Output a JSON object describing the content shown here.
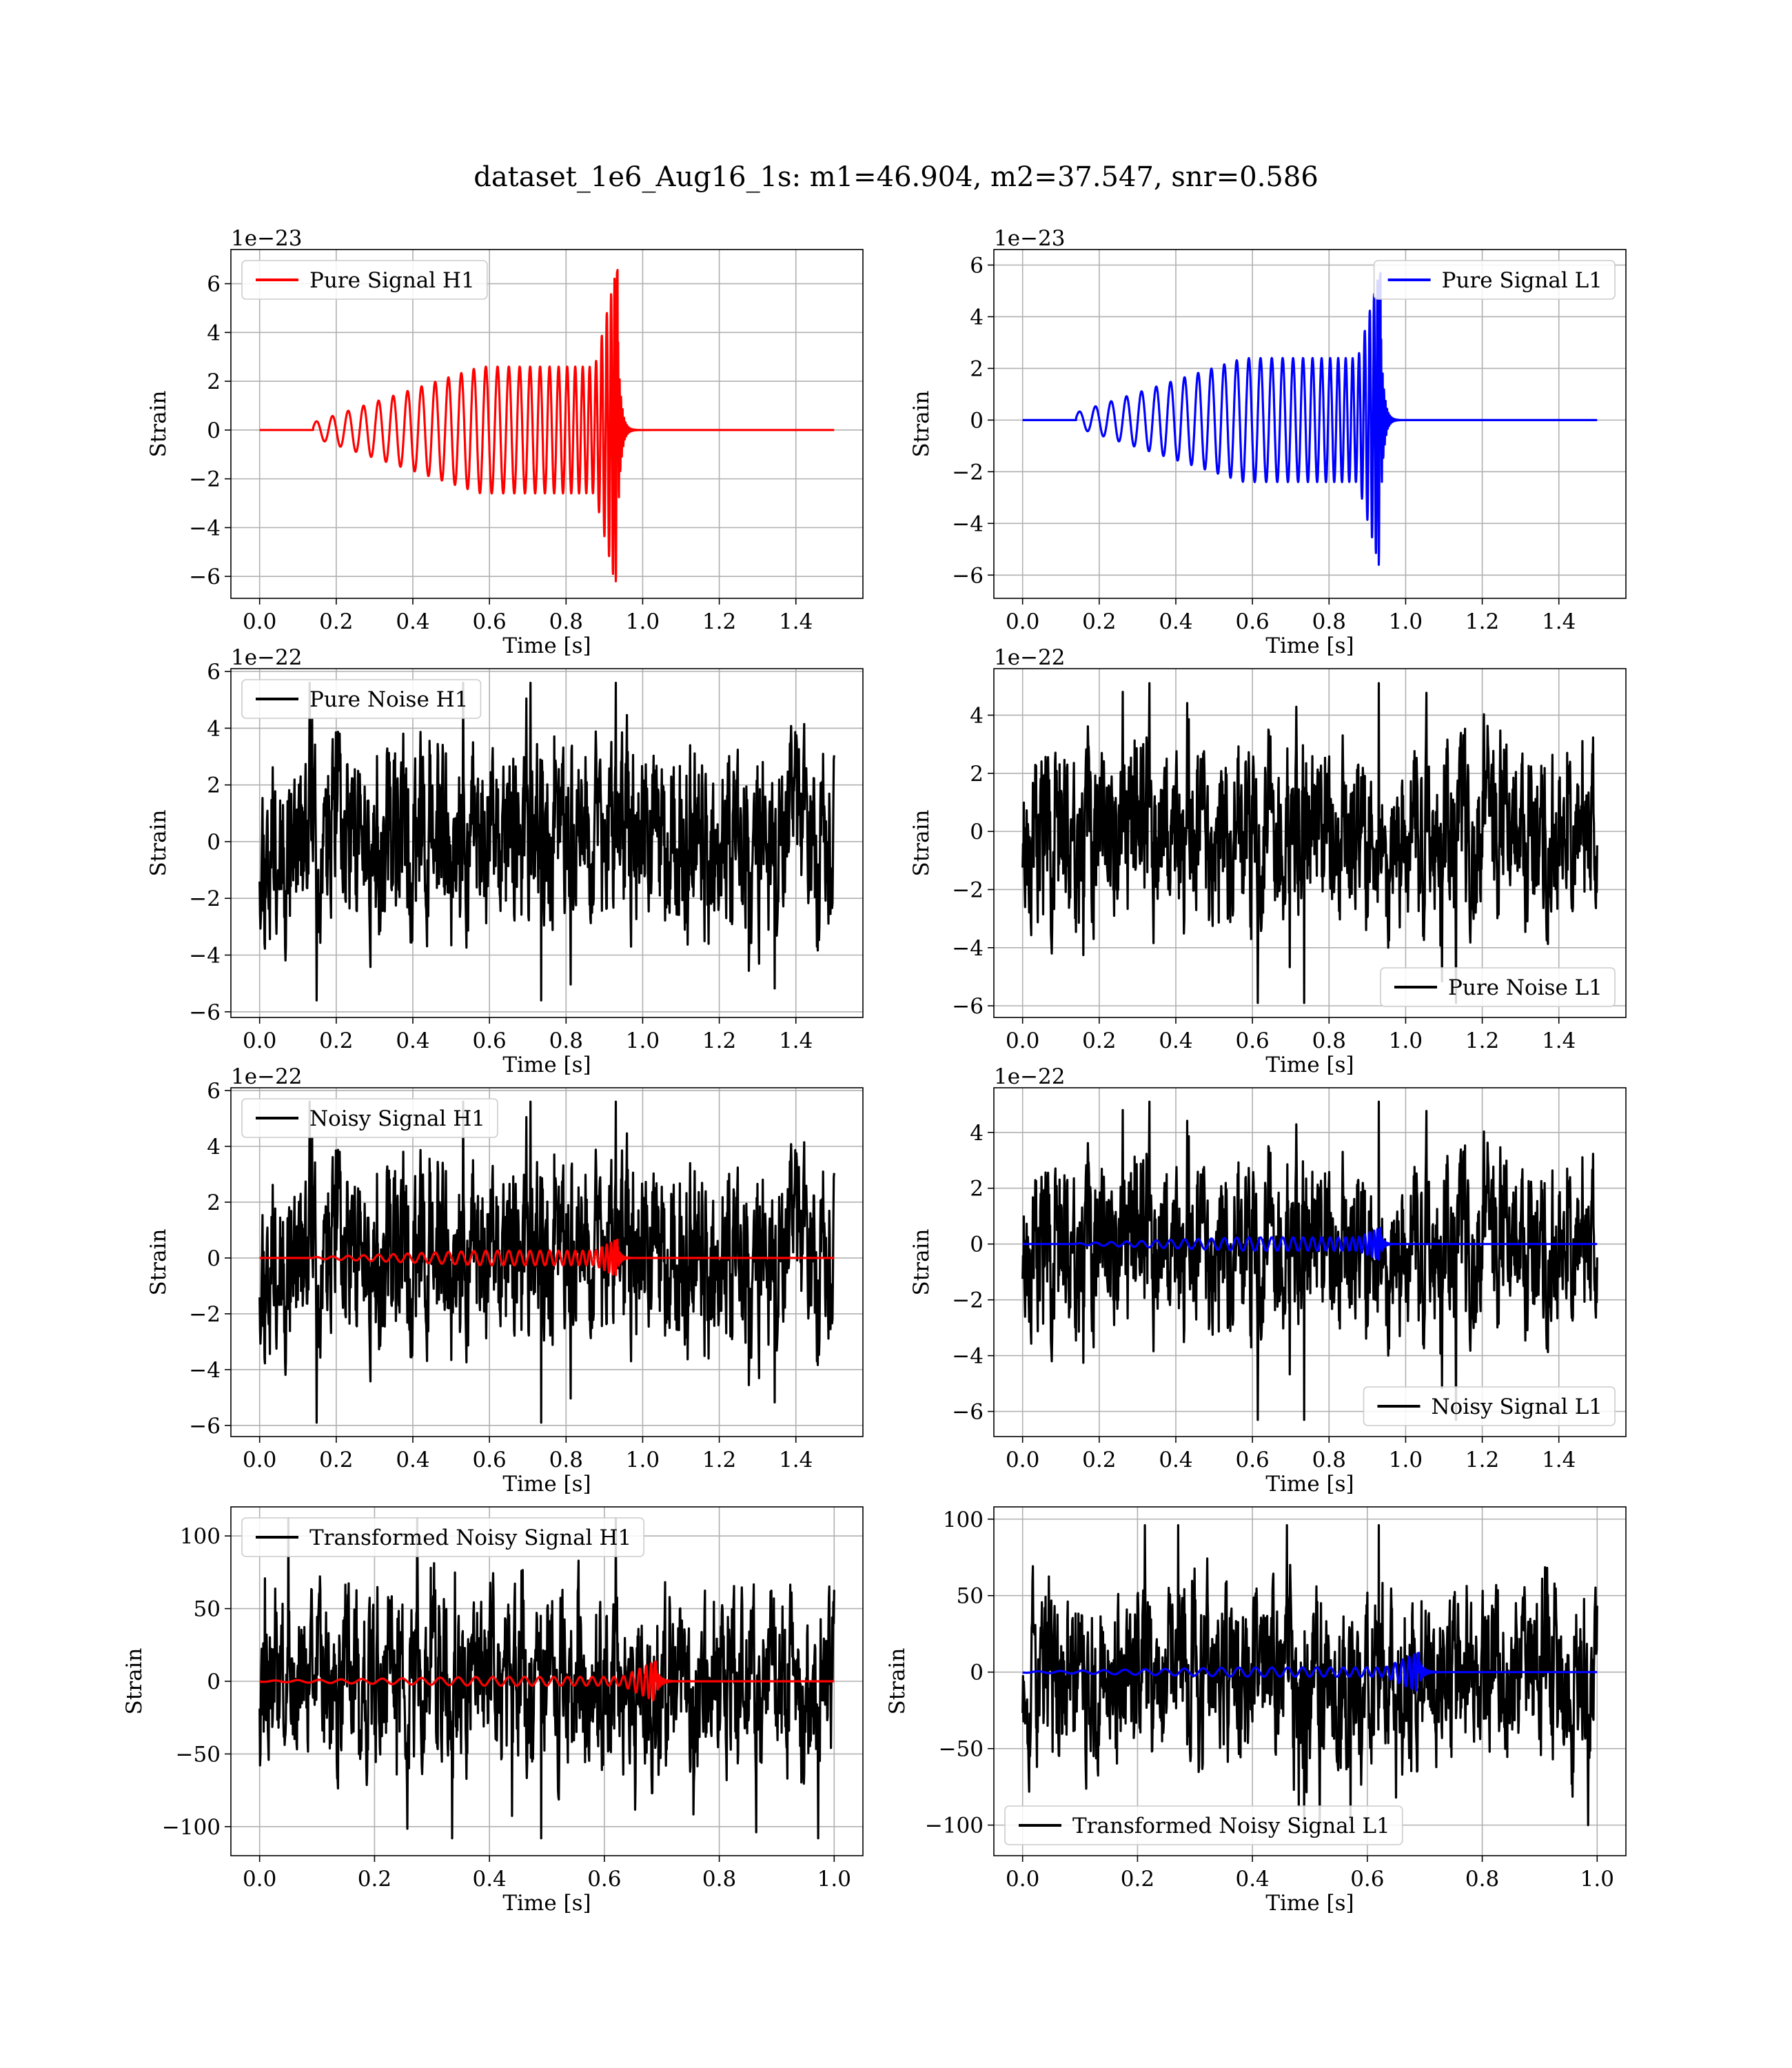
{
  "figure": {
    "title": "dataset_1e6_Aug16_1s: m1=46.904, m2=37.547, snr=0.586"
  },
  "colors": {
    "h1_signal": "#ff0000",
    "l1_signal": "#0000ff",
    "noise": "#000000",
    "grid": "#b0b0b0",
    "axes": "#000000"
  },
  "chart_data": [
    {
      "id": "pure-signal-h1",
      "type": "line",
      "xlabel": "Time [s]",
      "ylabel": "Strain",
      "offset_text": "1e−23",
      "xlim": [
        -0.075,
        1.575
      ],
      "ylim": [
        -6.9,
        7.4
      ],
      "xticks": [
        0.0,
        0.2,
        0.4,
        0.6,
        0.8,
        1.0,
        1.2,
        1.4
      ],
      "xtick_labels": [
        "0.0",
        "0.2",
        "0.4",
        "0.6",
        "0.8",
        "1.0",
        "1.2",
        "1.4"
      ],
      "yticks": [
        -6,
        -4,
        -2,
        0,
        2,
        4,
        6
      ],
      "ytick_labels": [
        "−6",
        "−4",
        "−2",
        "0",
        "2",
        "4",
        "6"
      ],
      "grid": true,
      "legend_position": "upper-left",
      "series": [
        {
          "name": "Pure Signal H1",
          "color": "#ff0000",
          "kind": "chirp",
          "x_range": [
            0.0,
            1.5
          ],
          "onset": 0.14,
          "merger": 0.935,
          "peak_amplitude": 6.8,
          "plateau_amplitude": 2.6,
          "min_value": -6.2
        }
      ]
    },
    {
      "id": "pure-signal-l1",
      "type": "line",
      "xlabel": "Time [s]",
      "ylabel": "Strain",
      "offset_text": "1e−23",
      "xlim": [
        -0.075,
        1.575
      ],
      "ylim": [
        -6.9,
        6.6
      ],
      "xticks": [
        0.0,
        0.2,
        0.4,
        0.6,
        0.8,
        1.0,
        1.2,
        1.4
      ],
      "xtick_labels": [
        "0.0",
        "0.2",
        "0.4",
        "0.6",
        "0.8",
        "1.0",
        "1.2",
        "1.4"
      ],
      "yticks": [
        -6,
        -4,
        -2,
        0,
        2,
        4,
        6
      ],
      "ytick_labels": [
        "−6",
        "−4",
        "−2",
        "0",
        "2",
        "4",
        "6"
      ],
      "grid": true,
      "legend_position": "upper-right",
      "series": [
        {
          "name": "Pure Signal L1",
          "color": "#0000ff",
          "kind": "chirp",
          "x_range": [
            0.0,
            1.5
          ],
          "onset": 0.14,
          "merger": 0.935,
          "peak_amplitude": 5.9,
          "plateau_amplitude": 2.4,
          "min_value": -6.3
        }
      ]
    },
    {
      "id": "pure-noise-h1",
      "type": "line",
      "xlabel": "Time [s]",
      "ylabel": "Strain",
      "offset_text": "1e−22",
      "xlim": [
        -0.075,
        1.575
      ],
      "ylim": [
        -6.2,
        6.1
      ],
      "xticks": [
        0.0,
        0.2,
        0.4,
        0.6,
        0.8,
        1.0,
        1.2,
        1.4
      ],
      "xtick_labels": [
        "0.0",
        "0.2",
        "0.4",
        "0.6",
        "0.8",
        "1.0",
        "1.2",
        "1.4"
      ],
      "yticks": [
        -6,
        -4,
        -2,
        0,
        2,
        4,
        6
      ],
      "ytick_labels": [
        "−6",
        "−4",
        "−2",
        "0",
        "2",
        "4",
        "6"
      ],
      "grid": true,
      "legend_position": "upper-left",
      "series": [
        {
          "name": "Pure Noise H1",
          "color": "#000000",
          "kind": "noise",
          "x_range": [
            0.0,
            1.5
          ],
          "max_value": 5.6,
          "min_value": -5.6,
          "typical_amplitude": 2.4,
          "seed": 11
        }
      ]
    },
    {
      "id": "pure-noise-l1",
      "type": "line",
      "xlabel": "Time [s]",
      "ylabel": "Strain",
      "offset_text": "1e−22",
      "xlim": [
        -0.075,
        1.575
      ],
      "ylim": [
        -6.4,
        5.6
      ],
      "xticks": [
        0.0,
        0.2,
        0.4,
        0.6,
        0.8,
        1.0,
        1.2,
        1.4
      ],
      "xtick_labels": [
        "0.0",
        "0.2",
        "0.4",
        "0.6",
        "0.8",
        "1.0",
        "1.2",
        "1.4"
      ],
      "yticks": [
        -6,
        -4,
        -2,
        0,
        2,
        4
      ],
      "ytick_labels": [
        "−6",
        "−4",
        "−2",
        "0",
        "2",
        "4"
      ],
      "grid": true,
      "legend_position": "lower-right",
      "series": [
        {
          "name": "Pure Noise L1",
          "color": "#000000",
          "kind": "noise",
          "x_range": [
            0.0,
            1.5
          ],
          "max_value": 5.1,
          "min_value": -5.9,
          "typical_amplitude": 2.3,
          "seed": 23
        }
      ]
    },
    {
      "id": "noisy-signal-h1",
      "type": "line",
      "xlabel": "Time [s]",
      "ylabel": "Strain",
      "offset_text": "1e−22",
      "xlim": [
        -0.075,
        1.575
      ],
      "ylim": [
        -6.4,
        6.1
      ],
      "xticks": [
        0.0,
        0.2,
        0.4,
        0.6,
        0.8,
        1.0,
        1.2,
        1.4
      ],
      "xtick_labels": [
        "0.0",
        "0.2",
        "0.4",
        "0.6",
        "0.8",
        "1.0",
        "1.2",
        "1.4"
      ],
      "yticks": [
        -6,
        -4,
        -2,
        0,
        2,
        4,
        6
      ],
      "ytick_labels": [
        "−6",
        "−4",
        "−2",
        "0",
        "2",
        "4",
        "6"
      ],
      "grid": true,
      "legend_position": "upper-left",
      "series": [
        {
          "name": "Noisy Signal H1",
          "color": "#000000",
          "kind": "noise",
          "x_range": [
            0.0,
            1.5
          ],
          "max_value": 5.6,
          "min_value": -5.9,
          "typical_amplitude": 2.4,
          "seed": 11
        },
        {
          "color": "#ff0000",
          "kind": "chirp",
          "x_range": [
            0.0,
            1.5
          ],
          "onset": 0.14,
          "merger": 0.935,
          "peak_amplitude": 0.68,
          "plateau_amplitude": 0.26,
          "min_value": -0.62
        }
      ]
    },
    {
      "id": "noisy-signal-l1",
      "type": "line",
      "xlabel": "Time [s]",
      "ylabel": "Strain",
      "offset_text": "1e−22",
      "xlim": [
        -0.075,
        1.575
      ],
      "ylim": [
        -6.9,
        5.6
      ],
      "xticks": [
        0.0,
        0.2,
        0.4,
        0.6,
        0.8,
        1.0,
        1.2,
        1.4
      ],
      "xtick_labels": [
        "0.0",
        "0.2",
        "0.4",
        "0.6",
        "0.8",
        "1.0",
        "1.2",
        "1.4"
      ],
      "yticks": [
        -6,
        -4,
        -2,
        0,
        2,
        4
      ],
      "ytick_labels": [
        "−6",
        "−4",
        "−2",
        "0",
        "2",
        "4"
      ],
      "grid": true,
      "legend_position": "lower-right",
      "series": [
        {
          "name": "Noisy Signal L1",
          "color": "#000000",
          "kind": "noise",
          "x_range": [
            0.0,
            1.5
          ],
          "max_value": 5.1,
          "min_value": -6.3,
          "typical_amplitude": 2.3,
          "seed": 23
        },
        {
          "color": "#0000ff",
          "kind": "chirp",
          "x_range": [
            0.0,
            1.5
          ],
          "onset": 0.14,
          "merger": 0.935,
          "peak_amplitude": 0.59,
          "plateau_amplitude": 0.24,
          "min_value": -0.63
        }
      ]
    },
    {
      "id": "transformed-noisy-signal-h1",
      "type": "line",
      "xlabel": "Time [s]",
      "ylabel": "Strain",
      "offset_text": "",
      "xlim": [
        -0.05,
        1.05
      ],
      "ylim": [
        -120,
        120
      ],
      "xticks": [
        0.0,
        0.2,
        0.4,
        0.6,
        0.8,
        1.0
      ],
      "xtick_labels": [
        "0.0",
        "0.2",
        "0.4",
        "0.6",
        "0.8",
        "1.0"
      ],
      "yticks": [
        -100,
        -50,
        0,
        50,
        100
      ],
      "ytick_labels": [
        "−100",
        "−50",
        "0",
        "50",
        "100"
      ],
      "grid": true,
      "legend_position": "upper-left",
      "series": [
        {
          "name": "Transformed Noisy Signal H1",
          "color": "#000000",
          "kind": "noise",
          "x_range": [
            0.0,
            1.0
          ],
          "max_value": 112,
          "min_value": -108,
          "typical_amplitude": 45,
          "seed": 37
        },
        {
          "color": "#ff0000",
          "kind": "chirp",
          "x_range": [
            0.0,
            1.0
          ],
          "onset": 0.0,
          "merger": 0.69,
          "peak_amplitude": 14,
          "plateau_amplitude": 3,
          "min_value": -14
        }
      ]
    },
    {
      "id": "transformed-noisy-signal-l1",
      "type": "line",
      "xlabel": "Time [s]",
      "ylabel": "Strain",
      "offset_text": "",
      "xlim": [
        -0.05,
        1.05
      ],
      "ylim": [
        -120,
        108
      ],
      "xticks": [
        0.0,
        0.2,
        0.4,
        0.6,
        0.8,
        1.0
      ],
      "xtick_labels": [
        "0.0",
        "0.2",
        "0.4",
        "0.6",
        "0.8",
        "1.0"
      ],
      "yticks": [
        -100,
        -50,
        0,
        50,
        100
      ],
      "ytick_labels": [
        "−100",
        "−50",
        "0",
        "50",
        "100"
      ],
      "grid": true,
      "legend_position": "lower-left",
      "series": [
        {
          "name": "Transformed Noisy Signal L1",
          "color": "#000000",
          "kind": "noise",
          "x_range": [
            0.0,
            1.0
          ],
          "max_value": 96,
          "min_value": -100,
          "typical_amplitude": 42,
          "seed": 53
        },
        {
          "color": "#0000ff",
          "kind": "chirp",
          "x_range": [
            0.0,
            1.0
          ],
          "onset": 0.0,
          "merger": 0.69,
          "peak_amplitude": 13,
          "plateau_amplitude": 3,
          "min_value": -13
        }
      ]
    }
  ]
}
